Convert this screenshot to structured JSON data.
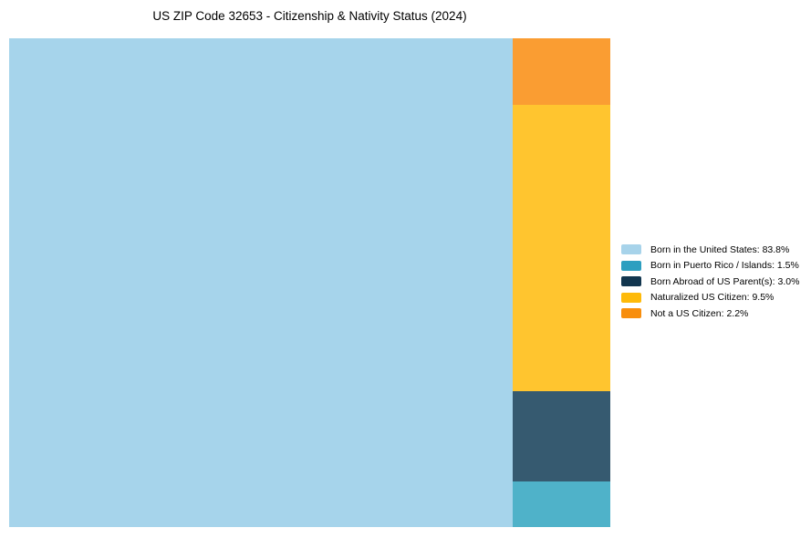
{
  "chart_data": {
    "type": "treemap",
    "title": "US ZIP Code 32653 - Citizenship & Nativity Status (2024)",
    "legend_position": "right",
    "grid": false,
    "segments": [
      {
        "id": "born_us",
        "label": "Born in the United States",
        "value": 83.8,
        "legend_label": "Born in the United States: 83.8%",
        "color": "#A7D3EA",
        "fill": "#A6D4EB",
        "region": "main"
      },
      {
        "id": "puerto_rico",
        "label": "Born in Puerto Rico / Islands",
        "value": 1.5,
        "legend_label": "Born in Puerto Rico / Islands: 1.5%",
        "color": "#2D9FC0",
        "fill": "#4FB2C9",
        "region": "column"
      },
      {
        "id": "born_abroad",
        "label": "Born Abroad of US Parent(s)",
        "value": 3.0,
        "legend_label": "Born Abroad of US Parent(s): 3.0%",
        "color": "#12364F",
        "fill": "#365A70",
        "region": "column"
      },
      {
        "id": "naturalized",
        "label": "Naturalized US Citizen",
        "value": 9.5,
        "legend_label": "Naturalized US Citizen: 9.5%",
        "color": "#FEBA0A",
        "fill": "#FFC52F",
        "region": "column"
      },
      {
        "id": "not_citizen",
        "label": "Not a US Citizen",
        "value": 2.2,
        "legend_label": "Not a US Citizen: 2.2%",
        "color": "#F88E0D",
        "fill": "#FA9D32",
        "region": "column"
      }
    ],
    "column_order_top_to_bottom": [
      "not_citizen",
      "naturalized",
      "born_abroad",
      "puerto_rico"
    ]
  }
}
